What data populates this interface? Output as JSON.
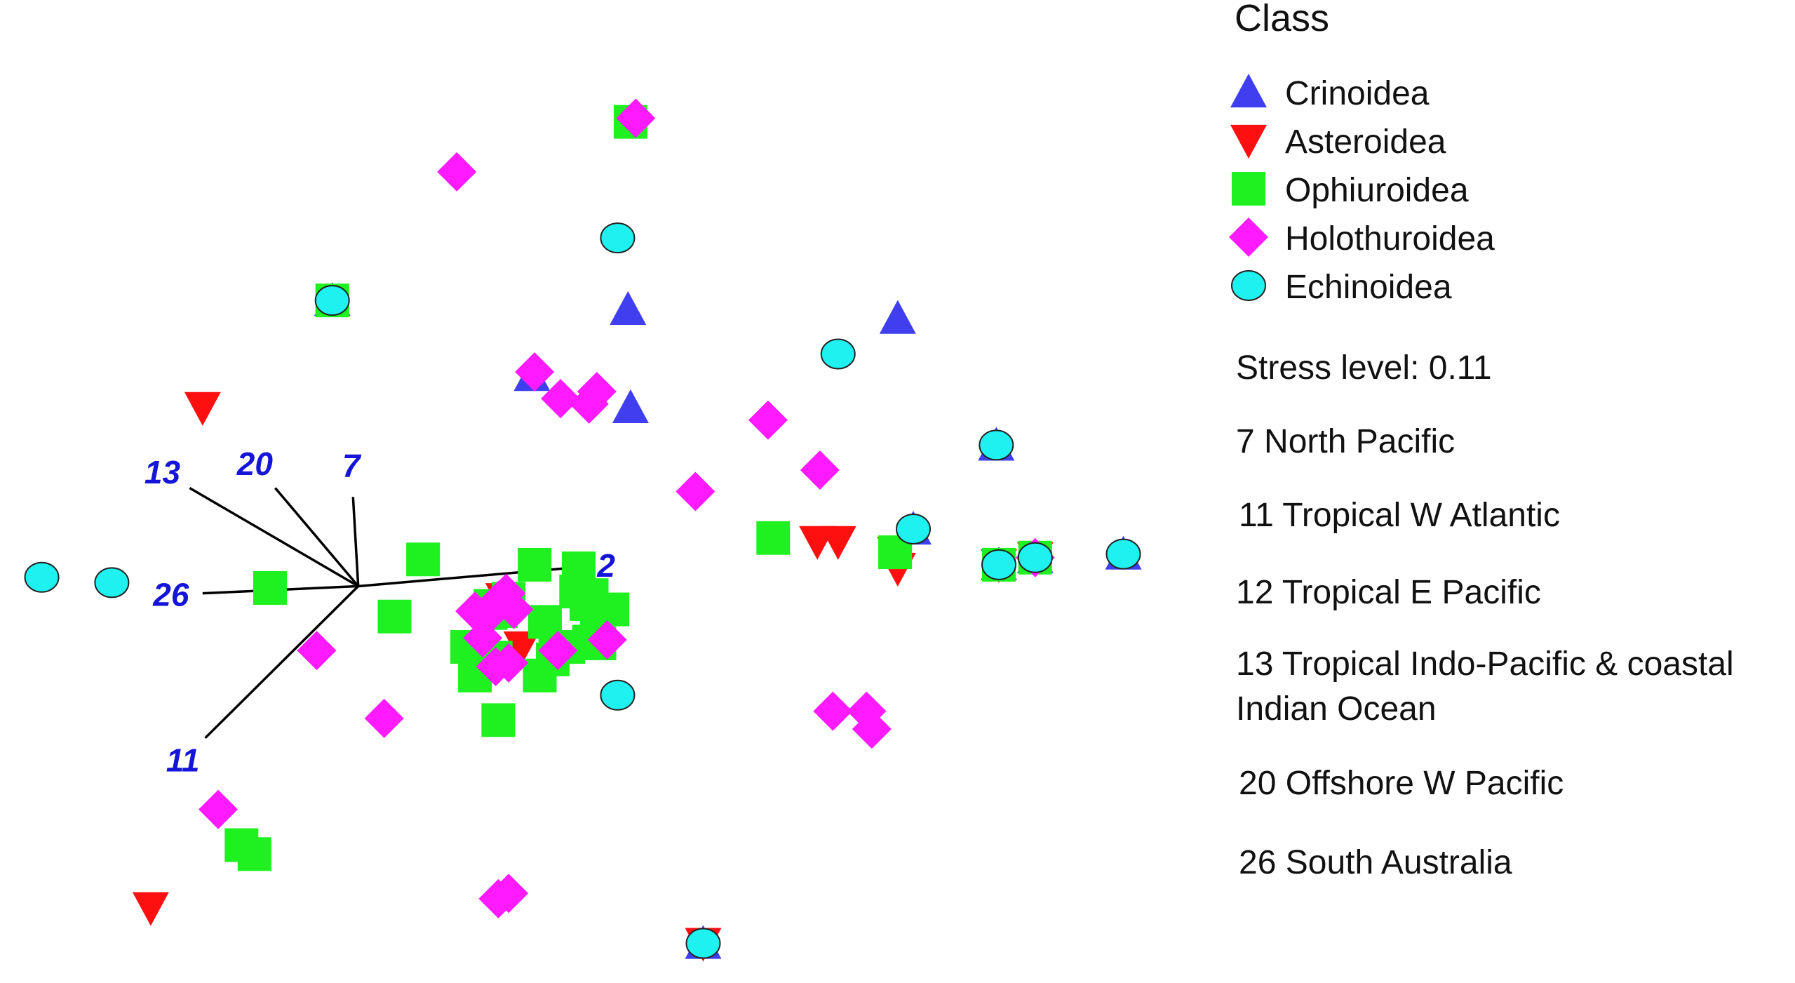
{
  "chart_data": {
    "type": "scatter",
    "title": "",
    "xlabel": "",
    "ylabel": "",
    "grid": false,
    "legend_placement": "right",
    "legend_title": "Class",
    "series": [
      {
        "name": "Crinoidea",
        "marker": "triangle-up",
        "color": "#3f3ff0",
        "points": [
          [
            -1.5,
            1.6
          ],
          [
            -0.36,
            1.55
          ],
          [
            -0.73,
            1.18
          ],
          [
            -0.35,
            1.0
          ],
          [
            0.68,
            1.5
          ],
          [
            0.74,
            0.32
          ],
          [
            1.06,
            0.79
          ],
          [
            1.55,
            0.18
          ],
          [
            1.07,
            0.12
          ],
          [
            1.21,
            0.16
          ],
          [
            -0.07,
            -2.0
          ]
        ]
      },
      {
        "name": "Asteroidea",
        "marker": "triangle-down",
        "color": "#ff1010",
        "points": [
          [
            -2.0,
            1.0
          ],
          [
            0.37,
            0.25
          ],
          [
            0.45,
            0.25
          ],
          [
            0.68,
            0.1
          ],
          [
            0.67,
            0.19
          ],
          [
            -0.84,
            -0.07
          ],
          [
            -0.77,
            -0.34
          ],
          [
            -0.07,
            -2.0
          ],
          [
            -2.2,
            -1.8
          ],
          [
            1.07,
            0.12
          ],
          [
            1.21,
            0.16
          ]
        ]
      },
      {
        "name": "Ophiuroidea",
        "marker": "square",
        "color": "#1ff01f",
        "points": [
          [
            -0.35,
            2.6
          ],
          [
            -1.5,
            1.6
          ],
          [
            -1.74,
            -0.01
          ],
          [
            -1.15,
            0.15
          ],
          [
            -0.72,
            0.12
          ],
          [
            -1.26,
            -0.17
          ],
          [
            -0.98,
            -0.34
          ],
          [
            -0.87,
            -0.4
          ],
          [
            -0.95,
            -0.5
          ],
          [
            -0.89,
            -0.11
          ],
          [
            -0.85,
            -0.14
          ],
          [
            -0.65,
            -0.41
          ],
          [
            -0.64,
            -0.34
          ],
          [
            -0.52,
            -0.1
          ],
          [
            -0.56,
            -0.03
          ],
          [
            -0.48,
            -0.28
          ],
          [
            -0.47,
            -0.32
          ],
          [
            -0.59,
            -0.34
          ],
          [
            -0.51,
            -0.31
          ],
          [
            -0.7,
            -0.5
          ],
          [
            -0.86,
            -0.75
          ],
          [
            -0.55,
            0.1
          ],
          [
            -0.5,
            -0.05
          ],
          [
            -0.42,
            -0.13
          ],
          [
            -0.68,
            -0.2
          ],
          [
            -1.85,
            -1.45
          ],
          [
            -1.8,
            -1.5
          ],
          [
            0.2,
            0.27
          ],
          [
            0.67,
            0.19
          ],
          [
            1.07,
            0.12
          ],
          [
            1.21,
            0.16
          ],
          [
            -0.89,
            -0.15
          ],
          [
            -0.82,
            -0.07
          ]
        ]
      },
      {
        "name": "Holothuroidea",
        "marker": "diamond",
        "color": "#ff1aff",
        "points": [
          [
            -0.33,
            2.62
          ],
          [
            -1.02,
            2.32
          ],
          [
            -0.72,
            1.2
          ],
          [
            -0.62,
            1.05
          ],
          [
            -0.48,
            1.09
          ],
          [
            -0.51,
            1.02
          ],
          [
            -0.83,
            -0.04
          ],
          [
            -0.95,
            -0.14
          ],
          [
            -0.86,
            -0.08
          ],
          [
            -0.8,
            -0.13
          ],
          [
            -0.92,
            -0.29
          ],
          [
            -0.87,
            -0.45
          ],
          [
            -0.82,
            -0.43
          ],
          [
            -0.63,
            -0.36
          ],
          [
            -0.44,
            -0.3
          ],
          [
            -1.56,
            -0.36
          ],
          [
            -1.3,
            -0.74
          ],
          [
            -0.1,
            0.53
          ],
          [
            0.18,
            0.93
          ],
          [
            1.21,
            0.16
          ],
          [
            0.38,
            0.65
          ],
          [
            0.43,
            -0.7
          ],
          [
            0.58,
            -0.8
          ],
          [
            0.56,
            -0.7
          ],
          [
            -1.94,
            -1.25
          ],
          [
            -0.86,
            -1.75
          ],
          [
            -0.82,
            -1.72
          ],
          [
            -0.89,
            -0.15
          ]
        ]
      },
      {
        "name": "Echinoidea",
        "marker": "circle",
        "color": "#1ff0f0",
        "points": [
          [
            -1.5,
            1.6
          ],
          [
            -0.4,
            1.95
          ],
          [
            -2.62,
            0.05
          ],
          [
            -2.35,
            0.02
          ],
          [
            0.45,
            1.3
          ],
          [
            0.74,
            0.32
          ],
          [
            1.06,
            0.79
          ],
          [
            1.55,
            0.18
          ],
          [
            1.07,
            0.12
          ],
          [
            1.21,
            0.16
          ],
          [
            -0.4,
            -0.61
          ],
          [
            -0.07,
            -2.0
          ]
        ]
      }
    ],
    "xlim": [
      -2.7,
      1.6
    ],
    "ylim": [
      -2.1,
      2.85
    ],
    "vectors": [
      {
        "label": "13",
        "to": [
          -2.05,
          0.55
        ]
      },
      {
        "label": "20",
        "to": [
          -1.72,
          0.55
        ]
      },
      {
        "label": "7",
        "to": [
          -1.42,
          0.5
        ]
      },
      {
        "label": "12",
        "to": [
          -0.6,
          0.1
        ]
      },
      {
        "label": "26",
        "to": [
          -2.0,
          -0.04
        ]
      },
      {
        "label": "11",
        "to": [
          -1.99,
          -0.85
        ]
      }
    ],
    "vector_origin": [
      -1.4,
      0.0
    ]
  },
  "legend": {
    "title": "Class",
    "items": [
      "Crinoidea",
      "Asteroidea",
      "Ophiuroidea",
      "Holothuroidea",
      "Echinoidea"
    ]
  },
  "notes": {
    "stress": "Stress level: 0.11",
    "regions": [
      "7 North Pacific",
      "11 Tropical W Atlantic",
      "12 Tropical E Pacific",
      "13 Tropical Indo-Pacific & coastal",
      "Indian Ocean",
      "20 Offshore W Pacific",
      "26 South Australia"
    ]
  }
}
